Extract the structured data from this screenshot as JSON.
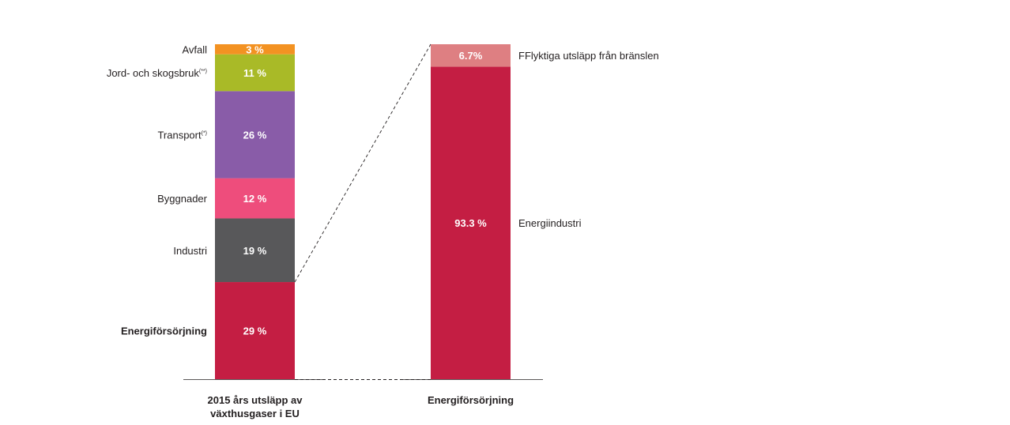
{
  "chart_data": {
    "type": "bar",
    "stacked": true,
    "bars": [
      {
        "category": "2015 års utsläpp av växthusgaser i EU",
        "category_lines": [
          "2015 års utsläpp av",
          "växthusgaser i EU"
        ],
        "segments": [
          {
            "label": "Energiförsörjning",
            "note": "",
            "value": 29,
            "value_label": "29 %",
            "color": "#c41e43",
            "label_bold": true
          },
          {
            "label": "Industri",
            "note": "",
            "value": 19,
            "value_label": "19 %",
            "color": "#58585a",
            "label_bold": false
          },
          {
            "label": "Byggnader",
            "note": "",
            "value": 12,
            "value_label": "12 %",
            "color": "#ee4d7c",
            "label_bold": false
          },
          {
            "label": "Transport",
            "note": "(*)",
            "value": 26,
            "value_label": "26 %",
            "color": "#895ca8",
            "label_bold": false
          },
          {
            "label": "Jord- och skogsbruk",
            "note": "(**)",
            "value": 11,
            "value_label": "11 %",
            "color": "#a9ba27",
            "label_bold": false
          },
          {
            "label": "Avfall",
            "note": "",
            "value": 3,
            "value_label": "3 %",
            "color": "#f39222",
            "label_bold": false
          }
        ]
      },
      {
        "category": "Energiförsörjning",
        "category_lines": [
          "Energiförsörjning"
        ],
        "segments": [
          {
            "label": "Energiindustri",
            "note": "",
            "value": 93.3,
            "value_label": "93.3 %",
            "color": "#c41e43",
            "label_bold": false
          },
          {
            "label": "FFlyktiga utsläpp från bränslen",
            "note": "",
            "value": 6.7,
            "value_label": "6.7%",
            "color": "#de7f82",
            "label_bold": false
          }
        ]
      }
    ],
    "unit": "%",
    "ylim": [
      0,
      100
    ],
    "grid": false,
    "legend": "none",
    "connector": "dashed lines linking the Energiförsörjning segment of bar 1 to bar 2"
  }
}
